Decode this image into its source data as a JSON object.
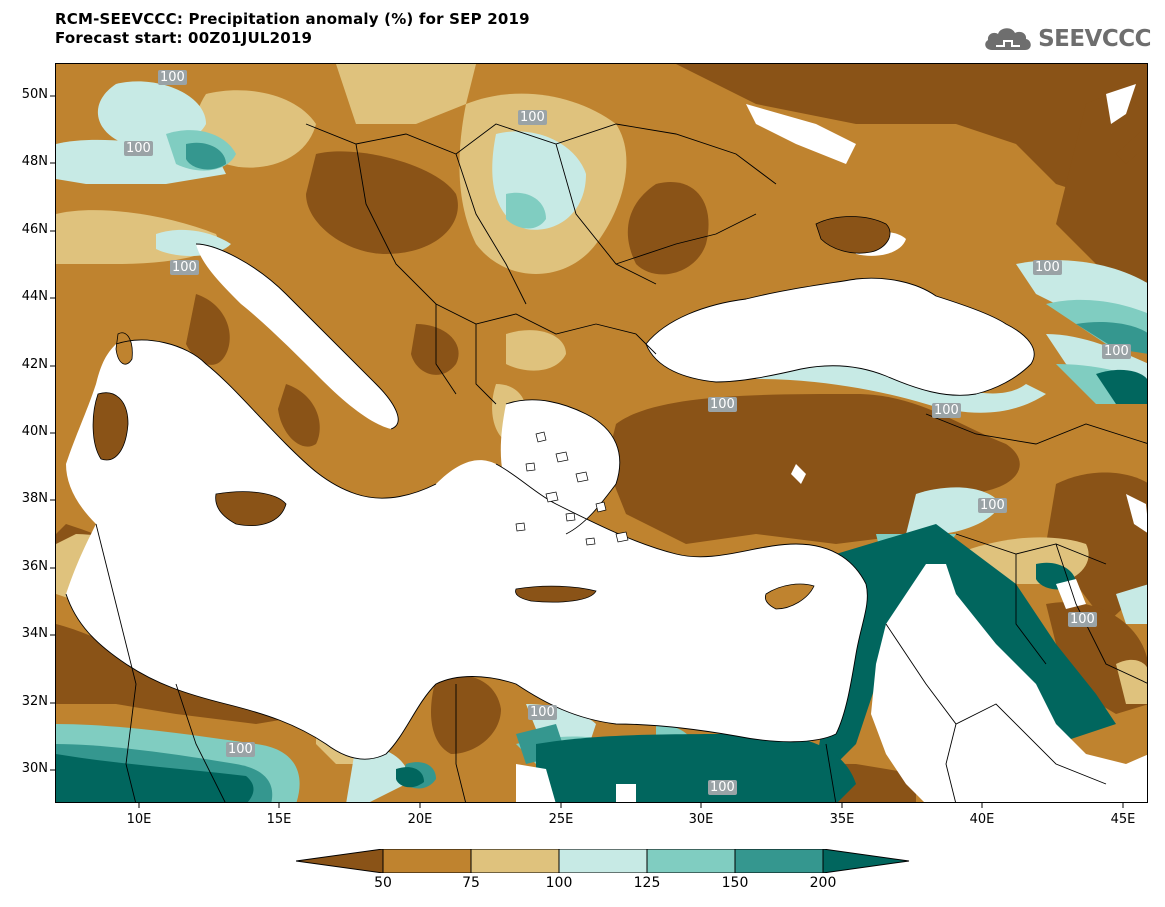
{
  "header": {
    "title_line1": "RCM-SEEVCCC: Precipitation anomaly (%) for SEP 2019",
    "title_line2": "Forecast start: 00Z01JUL2019"
  },
  "logo": {
    "text": "SEEVCCC",
    "icon": "cloud-icon"
  },
  "map": {
    "lat_labels": [
      "50N",
      "48N",
      "46N",
      "44N",
      "42N",
      "40N",
      "38N",
      "36N",
      "34N",
      "32N",
      "30N"
    ],
    "lon_labels": [
      "10E",
      "15E",
      "20E",
      "25E",
      "30E",
      "35E",
      "40E",
      "45E"
    ],
    "contour_labels": [
      "100",
      "100",
      "100",
      "100",
      "100",
      "100",
      "100",
      "100",
      "100",
      "100",
      "100",
      "100",
      "100"
    ]
  },
  "colorbar": {
    "colors": [
      "#8a5317",
      "#bf832f",
      "#dfc27d",
      "#c7eae5",
      "#80cdc1",
      "#35978f",
      "#01665e"
    ],
    "labels": [
      "50",
      "75",
      "100",
      "125",
      "150",
      "200"
    ]
  }
}
